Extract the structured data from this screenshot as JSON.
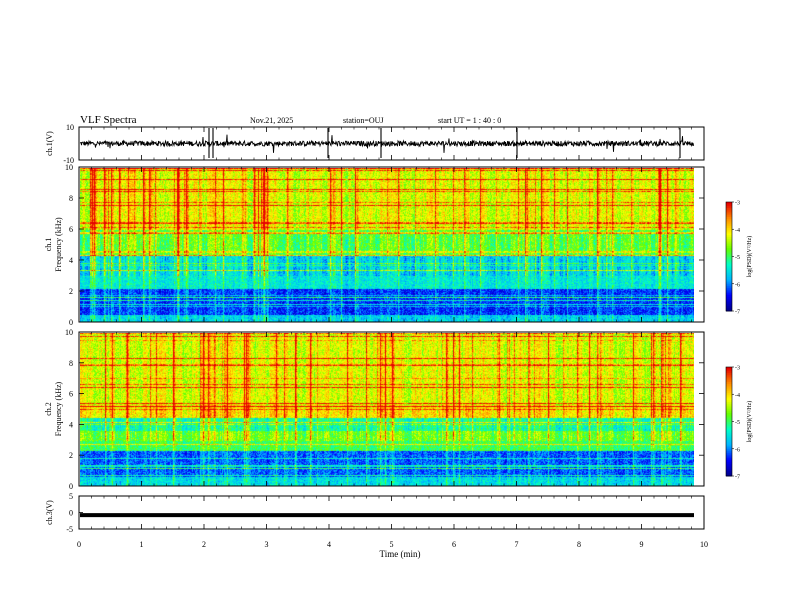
{
  "header": {
    "title": "VLF Spectra",
    "date": "Nov.21, 2025",
    "station": "station=OUJ",
    "start_ut": "start  UT =   1 : 40 : 0"
  },
  "chart_data": [
    {
      "type": "line",
      "panel": "ch1-waveform",
      "ylabel": "ch.1(V)",
      "ylim": [
        -10,
        10
      ],
      "yticks": [
        "10",
        "-10"
      ],
      "xlim": [
        0,
        10
      ],
      "baseline": 0,
      "description_values": "noisy waveform near 0 V with impulsive spikes up to about +/-10 V"
    },
    {
      "type": "heatmap",
      "panel": "ch1-spectrogram",
      "ylabel": "ch.1",
      "ylabel2": "Frequency  (kHz)",
      "ylim": [
        0,
        10
      ],
      "yticks": [
        "0",
        "2",
        "4",
        "6",
        "8",
        "10"
      ],
      "xlim": [
        0,
        10
      ],
      "colorbar": {
        "label": "log(PSD)(V²/Hz)",
        "range": [
          -7,
          -3
        ],
        "ticks": [
          "-3",
          "-4",
          "-5",
          "-6",
          "-7"
        ]
      }
    },
    {
      "type": "heatmap",
      "panel": "ch2-spectrogram",
      "ylabel": "ch.2",
      "ylabel2": "Frequency  (kHz)",
      "ylim": [
        0,
        10
      ],
      "yticks": [
        "0",
        "2",
        "4",
        "6",
        "8",
        "10"
      ],
      "xlim": [
        0,
        10
      ],
      "colorbar": {
        "label": "log(PSD)(V²/Hz)",
        "range": [
          -7,
          -3
        ],
        "ticks": [
          "-3",
          "-4",
          "-5",
          "-6",
          "-7"
        ]
      }
    },
    {
      "type": "line",
      "panel": "ch3-waveform",
      "ylabel": "ch.3(V)",
      "ylim": [
        -5,
        5
      ],
      "yticks": [
        "5",
        "0",
        "-5"
      ],
      "xlim": [
        0,
        10
      ],
      "baseline": -0.8
    }
  ],
  "xaxis": {
    "label": "Time  (min)",
    "ticks": [
      "0",
      "1",
      "2",
      "3",
      "4",
      "5",
      "6",
      "7",
      "8",
      "9",
      "10"
    ]
  },
  "colors": {
    "axis": "#000000",
    "cmap": [
      "#00008c",
      "#0000ff",
      "#00b4ff",
      "#00ffc8",
      "#64ff00",
      "#ffff00",
      "#ff8c00",
      "#e60000",
      "#ffffff"
    ]
  }
}
